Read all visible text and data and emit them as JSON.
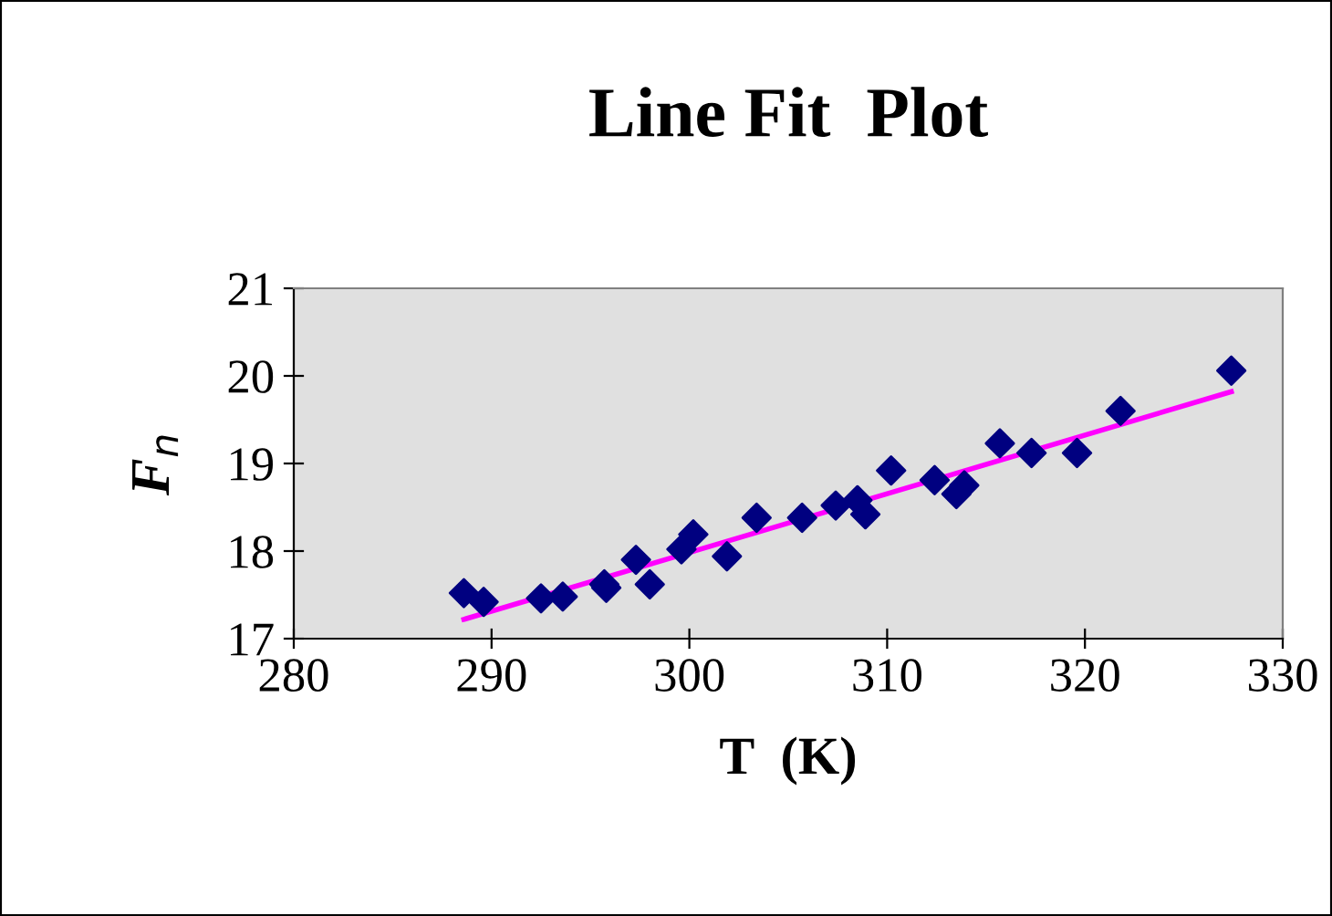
{
  "chart_data": {
    "type": "scatter",
    "title": "Line Fit  Plot",
    "xlabel": "T  (K)",
    "ylabel": "F$_{n}$",
    "grid": false,
    "legend": false,
    "xlim": [
      280,
      330
    ],
    "xticks": [
      280,
      290,
      300,
      310,
      320,
      330
    ],
    "ylim": [
      17,
      21
    ],
    "yticks": [
      17,
      18,
      19,
      20,
      21
    ],
    "series": [
      {
        "marker": "diamond",
        "color": "#000080",
        "x": [
          288.6,
          289.6,
          292.5,
          293.6,
          295.7,
          295.8,
          297.3,
          298.0,
          299.6,
          300.2,
          301.9,
          303.4,
          305.7,
          307.4,
          308.5,
          308.9,
          310.2,
          312.4,
          313.5,
          313.9,
          315.7,
          317.3,
          319.6,
          321.8,
          327.4
        ],
        "values": [
          17.52,
          17.42,
          17.46,
          17.48,
          17.62,
          17.58,
          17.9,
          17.62,
          18.02,
          18.19,
          17.94,
          18.38,
          18.38,
          18.52,
          18.58,
          18.42,
          18.92,
          18.81,
          18.65,
          18.75,
          19.23,
          19.12,
          19.12,
          19.6,
          20.06
        ]
      },
      {
        "type": "line",
        "marker": "none",
        "color": "#ff00ff",
        "x": [
          288.6,
          327.4
        ],
        "values": [
          17.22,
          19.82
        ]
      }
    ]
  }
}
